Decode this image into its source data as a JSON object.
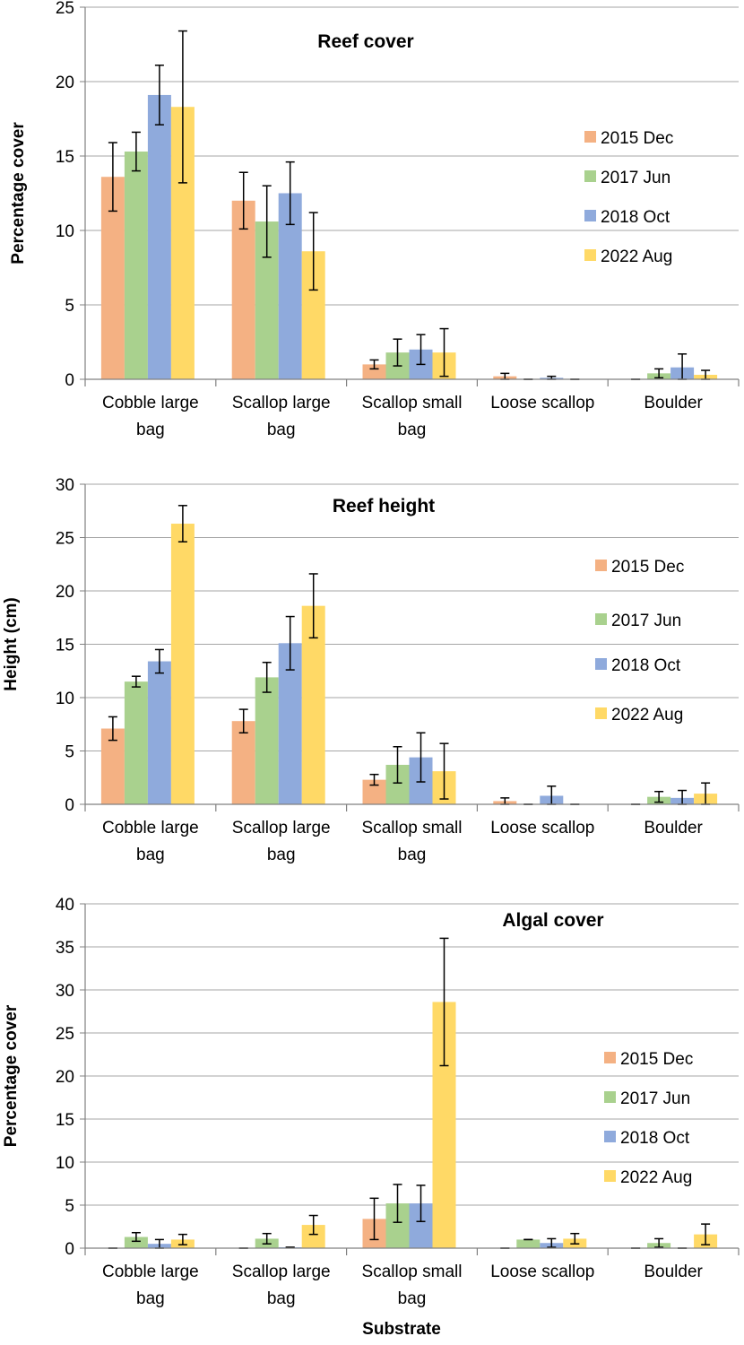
{
  "colors": {
    "2015 Dec": "#F4B183",
    "2017 Jun": "#A9D18E",
    "2018 Oct": "#8FAADC",
    "2022 Aug": "#FFD966",
    "axis": "#808080",
    "grid": "#A6A6A6",
    "errorbar": "#000000"
  },
  "xlabel": "Substrate",
  "chart_data": [
    {
      "type": "bar",
      "title": "Reef cover",
      "ylabel": "Percentage cover",
      "xlabel": "",
      "ylim": [
        0,
        25
      ],
      "yticks": [
        0,
        5,
        10,
        15,
        20,
        25
      ],
      "grid": true,
      "legend_position": "right",
      "categories": [
        "Cobble large bag",
        "Scallop large bag",
        "Scallop small bag",
        "Loose scallop",
        "Boulder"
      ],
      "series": [
        {
          "name": "2015 Dec",
          "values": [
            13.6,
            12.0,
            1.0,
            0.2,
            0.0
          ],
          "errors": [
            2.3,
            1.9,
            0.3,
            0.2,
            0.0
          ]
        },
        {
          "name": "2017 Jun",
          "values": [
            15.3,
            10.6,
            1.8,
            0.0,
            0.4
          ],
          "errors": [
            1.3,
            2.4,
            0.9,
            0.0,
            0.3
          ]
        },
        {
          "name": "2018 Oct",
          "values": [
            19.1,
            12.5,
            2.0,
            0.1,
            0.8
          ],
          "errors": [
            2.0,
            2.1,
            1.0,
            0.1,
            0.9
          ]
        },
        {
          "name": "2022 Aug",
          "values": [
            18.3,
            8.6,
            1.8,
            0.0,
            0.3
          ],
          "errors": [
            5.1,
            2.6,
            1.6,
            0.0,
            0.3
          ]
        }
      ]
    },
    {
      "type": "bar",
      "title": "Reef height",
      "ylabel": "Height (cm)",
      "xlabel": "",
      "ylim": [
        0,
        30
      ],
      "yticks": [
        0,
        5,
        10,
        15,
        20,
        25,
        30
      ],
      "grid": true,
      "legend_position": "right",
      "categories": [
        "Cobble large bag",
        "Scallop large bag",
        "Scallop small bag",
        "Loose scallop",
        "Boulder"
      ],
      "series": [
        {
          "name": "2015 Dec",
          "values": [
            7.1,
            7.8,
            2.3,
            0.3,
            0.0
          ],
          "errors": [
            1.1,
            1.1,
            0.5,
            0.3,
            0.0
          ]
        },
        {
          "name": "2017 Jun",
          "values": [
            11.5,
            11.9,
            3.7,
            0.0,
            0.7
          ],
          "errors": [
            0.5,
            1.4,
            1.7,
            0.0,
            0.5
          ]
        },
        {
          "name": "2018 Oct",
          "values": [
            13.4,
            15.1,
            4.4,
            0.8,
            0.6
          ],
          "errors": [
            1.1,
            2.5,
            2.3,
            0.9,
            0.7
          ]
        },
        {
          "name": "2022 Aug",
          "values": [
            26.3,
            18.6,
            3.1,
            0.0,
            1.0
          ],
          "errors": [
            1.7,
            3.0,
            2.6,
            0.0,
            1.0
          ]
        }
      ]
    },
    {
      "type": "bar",
      "title": "Algal cover",
      "ylabel": "Percentage cover",
      "xlabel": "Substrate",
      "ylim": [
        0,
        40
      ],
      "yticks": [
        0,
        5,
        10,
        15,
        20,
        25,
        30,
        35,
        40
      ],
      "grid": true,
      "legend_position": "right",
      "categories": [
        "Cobble large bag",
        "Scallop large bag",
        "Scallop small bag",
        "Loose scallop",
        "Boulder"
      ],
      "series": [
        {
          "name": "2015 Dec",
          "values": [
            0.0,
            0.0,
            3.4,
            0.0,
            0.0
          ],
          "errors": [
            0.0,
            0.0,
            2.4,
            0.0,
            0.0
          ]
        },
        {
          "name": "2017 Jun",
          "values": [
            1.3,
            1.1,
            5.2,
            1.0,
            0.6
          ],
          "errors": [
            0.5,
            0.6,
            2.2,
            0.0,
            0.5
          ]
        },
        {
          "name": "2018 Oct",
          "values": [
            0.5,
            0.1,
            5.2,
            0.6,
            0.0
          ],
          "errors": [
            0.5,
            0.0,
            2.1,
            0.5,
            0.0
          ]
        },
        {
          "name": "2022 Aug",
          "values": [
            1.0,
            2.7,
            28.6,
            1.1,
            1.6
          ],
          "errors": [
            0.6,
            1.1,
            7.4,
            0.6,
            1.2
          ]
        }
      ]
    }
  ]
}
